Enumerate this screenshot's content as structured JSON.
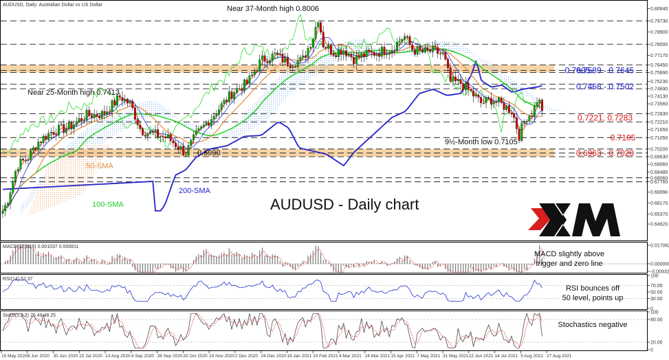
{
  "chart_data": {
    "type": "candlestick",
    "header": "AUDUSD, Daily:  Australian Dollar vs US Dollar",
    "title": "AUDUSD - Daily chart",
    "logo_text": "XM",
    "colors": {
      "sma50": "#e08a3c",
      "sma100": "#22cc22",
      "sma200": "#2222cc",
      "tenkan": "#dd2222",
      "kijun": "#2233ee",
      "chikou": "#33dd33",
      "cloud": "#6aa8e8",
      "zone": "#f5cc99",
      "bull": "#00aa00",
      "bear": "#cc0000",
      "blue_text": "#1a1acc",
      "red_text": "#dd1111"
    },
    "y_range": [
      0.6355,
      0.8108
    ],
    "price_ticks": [
      "0.80640",
      "0.79730",
      "0.78900",
      "0.78000",
      "0.77170",
      "0.76450",
      "0.75890",
      "0.75230",
      "0.74690",
      "0.74130",
      "0.73560",
      "0.72830",
      "0.72210",
      "0.71650",
      "0.71050",
      "0.70200",
      "0.69630",
      "0.69060",
      "0.68480",
      "0.68060",
      "0.67760",
      "0.66990",
      "0.66170",
      "0.65370",
      "0.64620"
    ],
    "date_labels": [
      "15 May 2020",
      "8 Jun 2020",
      "30 Jun 2020",
      "22 Jul 2020",
      "13 Aug 2020",
      "4 Sep 2020",
      "28 Sep 2020",
      "20 Oct 2020",
      "10 Nov 2020",
      "2 Dec 2020",
      "24 Dec 2020",
      "19 Jan 2021",
      "10 Feb 2021",
      "4 Mar 2021",
      "24 Mar 2021",
      "15 Apr 2021",
      "7 May 2021",
      "31 May 2021",
      "22 Jun 2021",
      "14 Jul 2021",
      "5 Aug 2021",
      "27 Aug 2021"
    ],
    "sma_labels": {
      "sma50": "50-SMA",
      "sma100": "100-SMA",
      "sma200": "200-SMA"
    },
    "annotations": {
      "high_37m": "Near 37-Month high 0.8006",
      "high_25m": "Near 25-Month high 0.7413",
      "low_9m": "9½-Month low 0.7105",
      "low_6990": "0.6990"
    },
    "levels": [
      {
        "label": "0.7605",
        "color": "blue"
      },
      {
        "label": "0.7589 - 0.7645",
        "color": "blue"
      },
      {
        "label": "0.7468 - 0.7502",
        "color": "blue"
      },
      {
        "label": "0.7221, 0.7283",
        "color": "red"
      },
      {
        "label": "0.7105",
        "color": "red"
      },
      {
        "label": "0.6963 - 0.7020",
        "color": "red"
      }
    ],
    "macd": {
      "header": "MACD(12,26,9) 0.001037 0.000811",
      "ticks": [
        "0.017062",
        "0.000000",
        "-0.009329"
      ],
      "note_line1": "MACD slightly above",
      "note_line2": "trigger and zero line"
    },
    "rsi": {
      "header": "RSI(14) 52.37",
      "ticks": [
        "100",
        "70.00",
        "50.00",
        "30.00",
        "0"
      ],
      "note_line1": "RSI bounces off",
      "note_line2": "50 level, points up"
    },
    "stoch": {
      "header": "Stoch(5,3,3) 25.49 48.25",
      "ticks": [
        "100",
        "80.00",
        "20.00",
        "0"
      ],
      "note": "Stochastics negative"
    }
  }
}
